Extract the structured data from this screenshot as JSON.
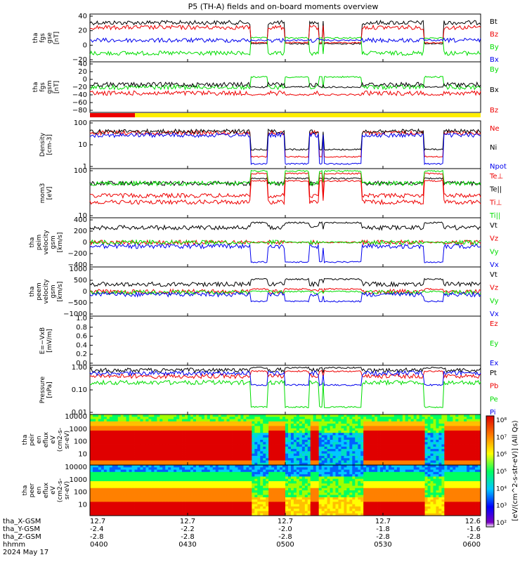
{
  "title": "P5 (TH-A) fields and on-board moments overview",
  "date": "2024 May 17",
  "colors": {
    "black": "#000000",
    "red": "#ee0000",
    "green": "#00dd00",
    "blue": "#0000ee",
    "yellow": "#ffee00",
    "frame": "#000000"
  },
  "orbit_labels": [
    "tha_X-GSM",
    "tha_Y-GSM",
    "tha_Z-GSM",
    "hhmm"
  ],
  "orbit_columns": [
    {
      "x": "12.7",
      "y": "-2.4",
      "z": "-2.8",
      "t": "0400"
    },
    {
      "x": "12.7",
      "y": "-2.2",
      "z": "-2.8",
      "t": "0430"
    },
    {
      "x": "12.7",
      "y": "-2.0",
      "z": "-2.8",
      "t": "0500"
    },
    {
      "x": "12.7",
      "y": "-1.8",
      "z": "-2.8",
      "t": "0530"
    },
    {
      "x": "12.6",
      "y": "-1.6",
      "z": "-2.8",
      "t": "0600"
    }
  ],
  "colorbar": {
    "ticks": [
      "10⁸",
      "10⁷",
      "10⁶",
      "10⁵",
      "10⁴",
      "10³",
      "10²"
    ],
    "label": "[eV/(cm^2-s-str-eV)] (All Qs)"
  },
  "chart_data": [
    {
      "type": "line",
      "ylabel_lines": [
        "tha",
        "fgs",
        "gse",
        "[nT]"
      ],
      "ylim": [
        -40,
        40
      ],
      "yticks": [
        "40",
        "20",
        "0",
        "−20"
      ],
      "series": [
        {
          "name": "Bt",
          "color": "black"
        },
        {
          "name": "Bz",
          "color": "red"
        },
        {
          "name": "By",
          "color": "green"
        },
        {
          "name": "Bx",
          "color": "blue"
        }
      ]
    },
    {
      "type": "line",
      "ylabel_lines": [
        "tha",
        "fgs",
        "gsm",
        "[nT]"
      ],
      "ylim": [
        -100,
        40
      ],
      "yticks": [
        "40",
        "20",
        "0",
        "−20",
        "−40",
        "−60",
        "−80"
      ],
      "series": [
        {
          "name": "By",
          "color": "green"
        },
        {
          "name": "Bx",
          "color": "black"
        },
        {
          "name": "Bz",
          "color": "red"
        }
      ]
    },
    {
      "type": "line",
      "ylabel_lines": [
        "Density",
        "[cm-3]"
      ],
      "ylim": [
        1,
        100
      ],
      "yscale": "log",
      "yticks": [
        "100",
        "10",
        "1"
      ],
      "series": [
        {
          "name": "Ne",
          "color": "red"
        },
        {
          "name": "Ni",
          "color": "black"
        },
        {
          "name": "Npot",
          "color": "blue"
        }
      ]
    },
    {
      "type": "line",
      "ylabel_lines": [
        "mom3",
        "[eV]"
      ],
      "ylim": [
        10,
        1000
      ],
      "yscale": "log",
      "yticks": [
        "100",
        "10"
      ],
      "series": [
        {
          "name": "Te⊥",
          "color": "red"
        },
        {
          "name": "Te||",
          "color": "black"
        },
        {
          "name": "Ti⊥",
          "color": "red"
        },
        {
          "name": "Ti||",
          "color": "green"
        }
      ]
    },
    {
      "type": "line",
      "ylabel_lines": [
        "tha",
        "peim",
        "velocity",
        "gsm",
        "[km/s]"
      ],
      "ylim": [
        -400,
        400
      ],
      "yticks": [
        "400",
        "200",
        "0",
        "−200",
        "−400"
      ],
      "series": [
        {
          "name": "Vt",
          "color": "black"
        },
        {
          "name": "Vz",
          "color": "red"
        },
        {
          "name": "Vy",
          "color": "green"
        },
        {
          "name": "Vx",
          "color": "blue"
        }
      ]
    },
    {
      "type": "line",
      "ylabel_lines": [
        "tha",
        "peem",
        "velocity",
        "gsm",
        "[km/s]"
      ],
      "ylim": [
        -1000,
        1000
      ],
      "yticks": [
        "1000",
        "500",
        "0",
        "−500",
        "−1000"
      ],
      "series": [
        {
          "name": "Vt",
          "color": "black"
        },
        {
          "name": "Vz",
          "color": "red"
        },
        {
          "name": "Vy",
          "color": "green"
        },
        {
          "name": "Vx",
          "color": "blue"
        }
      ]
    },
    {
      "type": "line",
      "ylabel_lines": [
        "E=−VxB",
        "[mV/m]"
      ],
      "ylim": [
        0,
        1
      ],
      "yticks": [
        "1.0",
        "0.8",
        "0.6",
        "0.4",
        "0.2",
        "0.0"
      ],
      "series": [
        {
          "name": "Ez",
          "color": "red"
        },
        {
          "name": "Ey",
          "color": "green"
        },
        {
          "name": "Ex",
          "color": "blue"
        }
      ]
    },
    {
      "type": "line",
      "ylabel_lines": [
        "Pressure",
        "[nPa]"
      ],
      "ylim": [
        0.001,
        1
      ],
      "yscale": "log",
      "yticks": [
        "1.00",
        "0.10",
        "0.01"
      ],
      "series": [
        {
          "name": "Pt",
          "color": "black"
        },
        {
          "name": "Pb",
          "color": "red"
        },
        {
          "name": "Pe",
          "color": "green"
        },
        {
          "name": "Pi",
          "color": "blue"
        }
      ]
    },
    {
      "type": "heatmap",
      "ylabel_lines": [
        "tha",
        "peir",
        "en",
        "eflux",
        "eV",
        "(cm2-s-",
        "sr-eV)"
      ],
      "ylim": [
        5,
        30000
      ],
      "yscale": "log",
      "yticks": [
        "10000",
        "1000",
        "100",
        "10"
      ]
    },
    {
      "type": "heatmap",
      "ylabel_lines": [
        "tha",
        "peer",
        "en",
        "eflux",
        "eV",
        "(cm2-s-",
        "sr-eV)"
      ],
      "ylim": [
        5,
        30000
      ],
      "yscale": "log",
      "yticks": [
        "10000",
        "1000",
        "100",
        "10"
      ]
    }
  ]
}
